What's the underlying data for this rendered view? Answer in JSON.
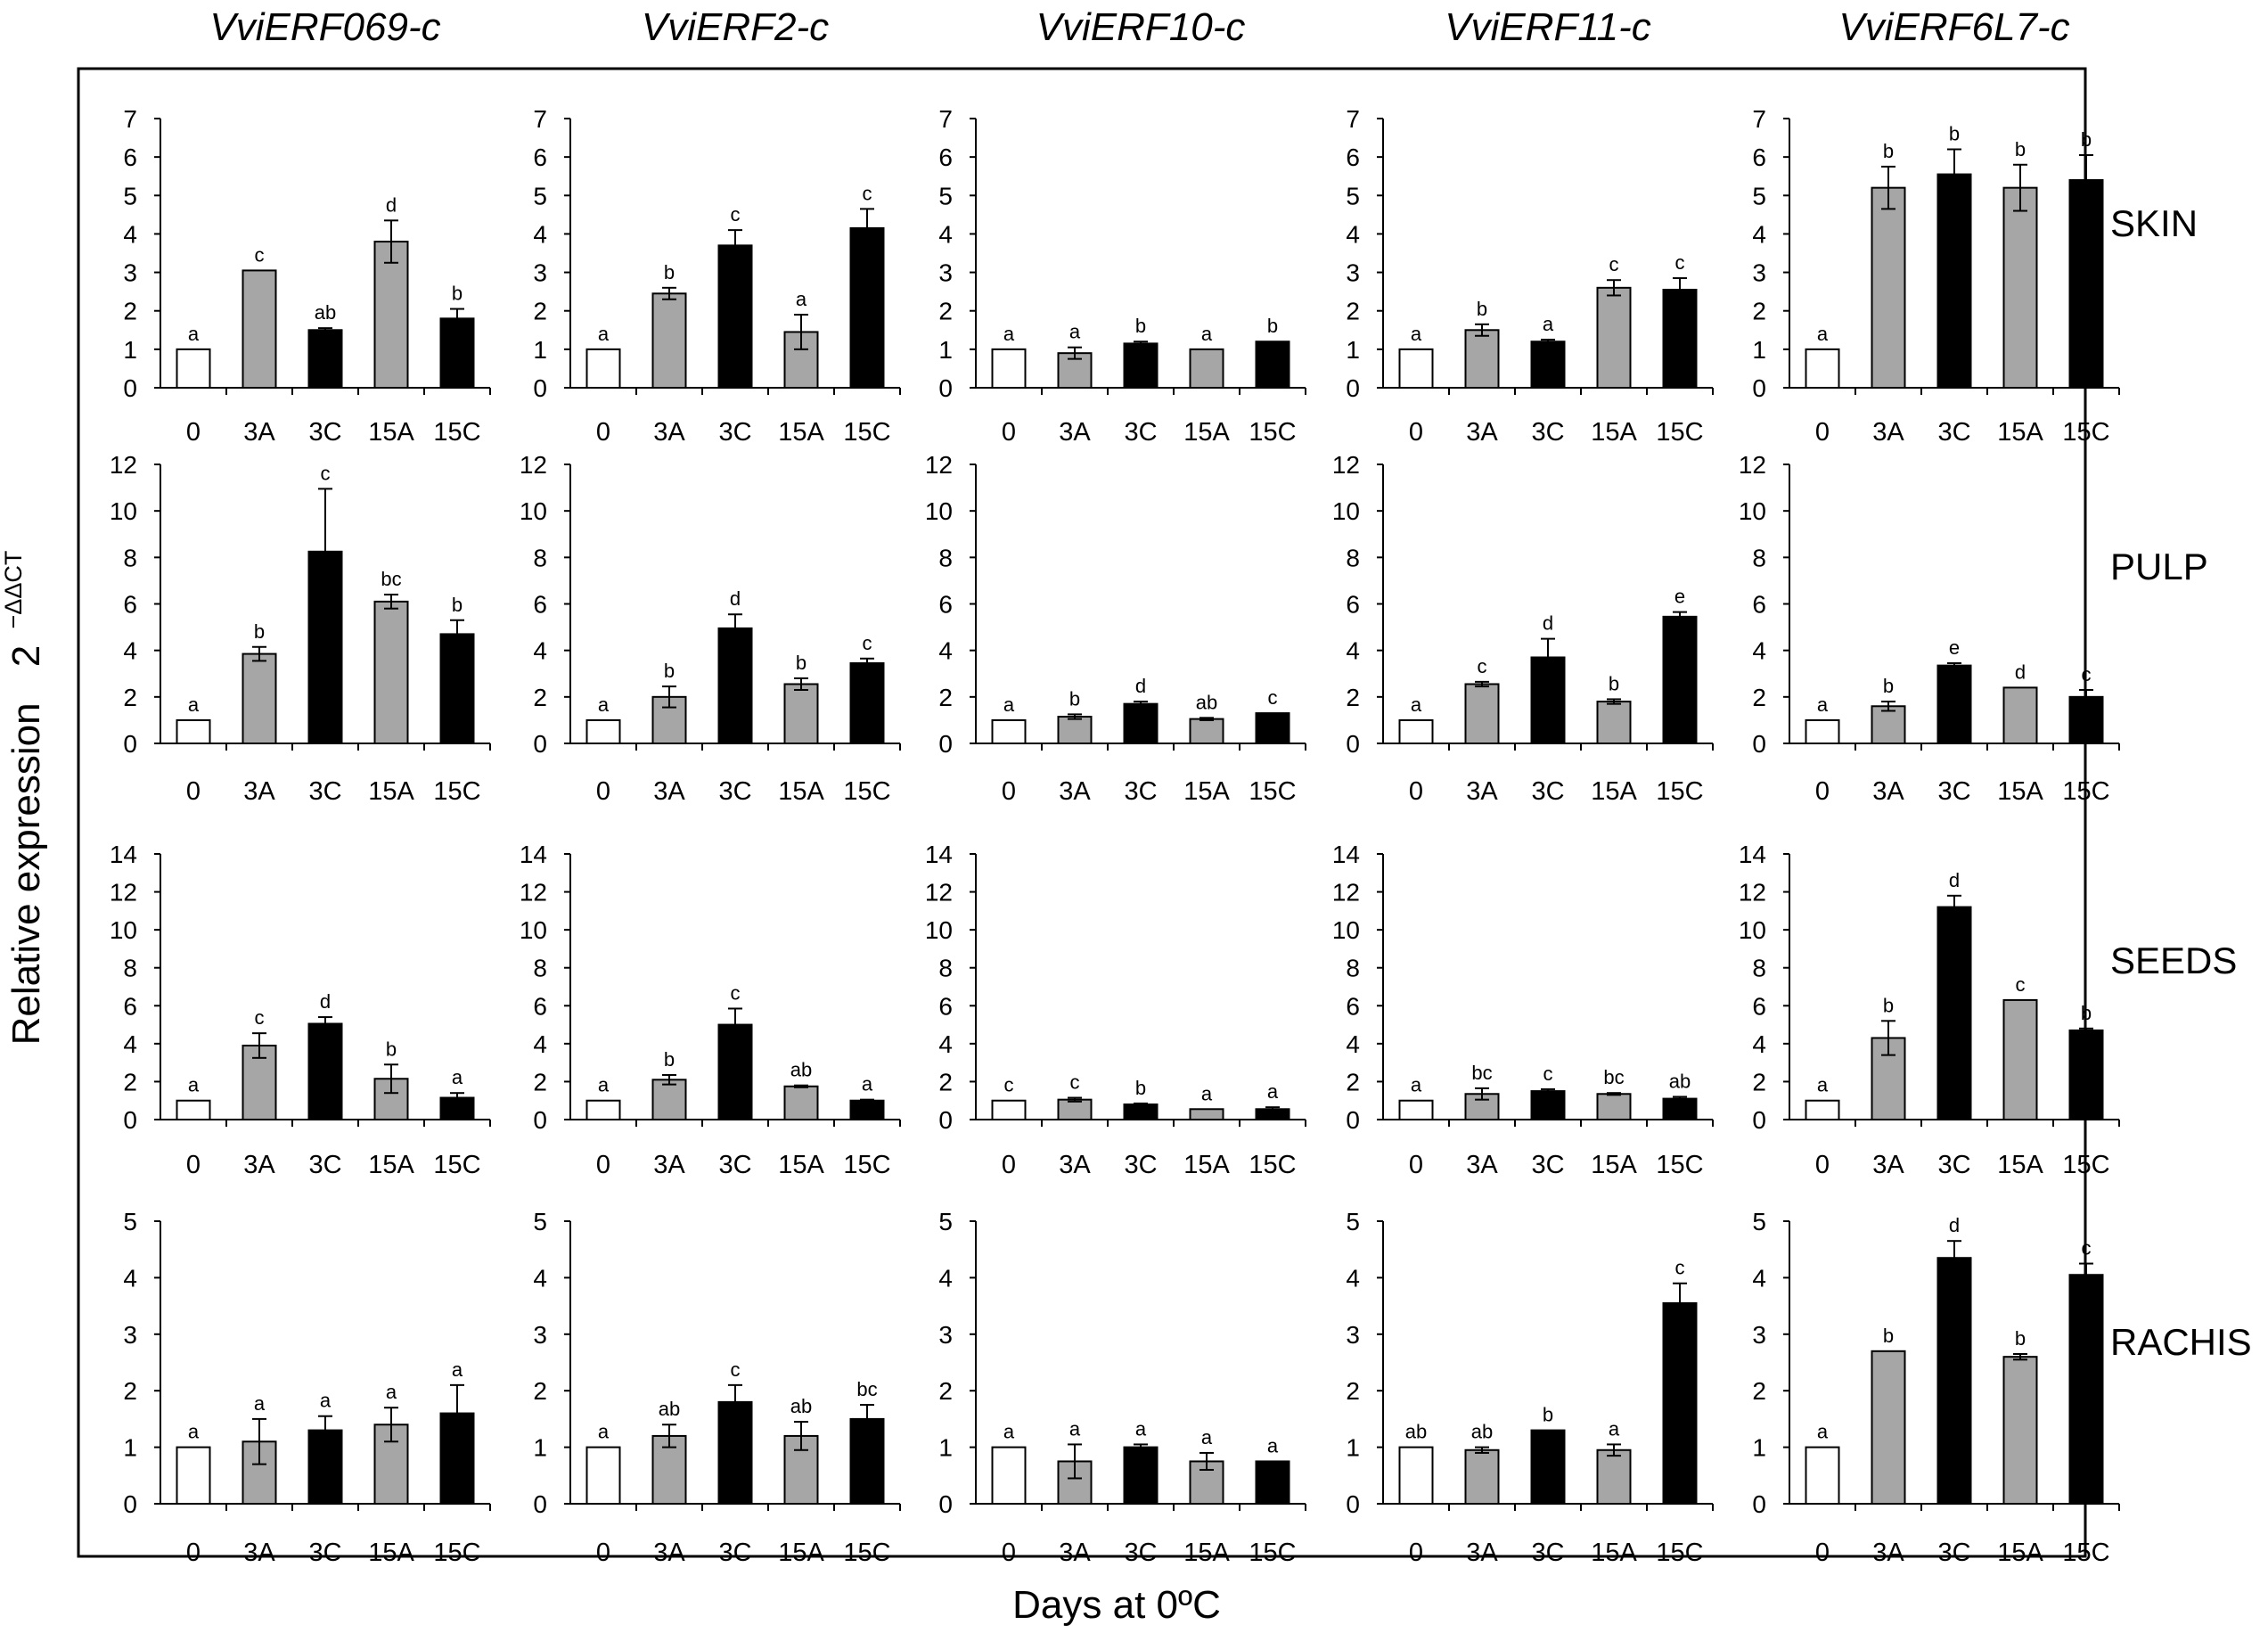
{
  "chart_data": {
    "type": "bar",
    "xlabel": "Days at 0ºC",
    "ylabel_text": "Relative expression",
    "ylabel_base": "2",
    "ylabel_superscript": "−ΔΔCT",
    "categories": [
      "0",
      "3A",
      "3C",
      "15A",
      "15C"
    ],
    "bar_colors": [
      "#ffffff",
      "#a6a6a6",
      "#000000",
      "#a6a6a6",
      "#000000"
    ],
    "genes": [
      "VviERF069-c",
      "VviERF2-c",
      "VviERF10-c",
      "VviERF11-c",
      "VviERF6L7-c"
    ],
    "tissues": [
      {
        "name": "SKIN",
        "ylim": [
          0,
          7
        ],
        "ticks": [
          0,
          1,
          2,
          3,
          4,
          5,
          6,
          7
        ],
        "panels": [
          {
            "values": [
              1,
              3.05,
              1.5,
              3.8,
              1.8
            ],
            "errors": [
              0,
              0,
              0.05,
              0.55,
              0.25
            ],
            "letters": [
              "a",
              "c",
              "ab",
              "d",
              "b"
            ]
          },
          {
            "values": [
              1,
              2.45,
              3.7,
              1.45,
              4.15
            ],
            "errors": [
              0,
              0.15,
              0.4,
              0.45,
              0.5
            ],
            "letters": [
              "a",
              "b",
              "c",
              "a",
              "c"
            ]
          },
          {
            "values": [
              1,
              0.9,
              1.15,
              1.0,
              1.2
            ],
            "errors": [
              0,
              0.15,
              0.05,
              0,
              0
            ],
            "letters": [
              "a",
              "a",
              "b",
              "a",
              "b"
            ]
          },
          {
            "values": [
              1,
              1.5,
              1.2,
              2.6,
              2.55
            ],
            "errors": [
              0,
              0.15,
              0.05,
              0.2,
              0.3
            ],
            "letters": [
              "a",
              "b",
              "a",
              "c",
              "c"
            ]
          },
          {
            "values": [
              1,
              5.2,
              5.55,
              5.2,
              5.4
            ],
            "errors": [
              0,
              0.55,
              0.65,
              0.6,
              0.65
            ],
            "letters": [
              "a",
              "b",
              "b",
              "b",
              "b"
            ]
          }
        ]
      },
      {
        "name": "PULP",
        "ylim": [
          0,
          12
        ],
        "ticks": [
          0,
          2,
          4,
          6,
          8,
          10,
          12
        ],
        "panels": [
          {
            "values": [
              1,
              3.85,
              8.25,
              6.1,
              4.7
            ],
            "errors": [
              0,
              0.3,
              2.7,
              0.3,
              0.6
            ],
            "letters": [
              "a",
              "b",
              "c",
              "bc",
              "b"
            ]
          },
          {
            "values": [
              1,
              2.0,
              4.95,
              2.55,
              3.45
            ],
            "errors": [
              0,
              0.45,
              0.6,
              0.25,
              0.2
            ],
            "letters": [
              "a",
              "b",
              "d",
              "b",
              "c"
            ]
          },
          {
            "values": [
              1,
              1.15,
              1.7,
              1.05,
              1.3
            ],
            "errors": [
              0,
              0.1,
              0.1,
              0.05,
              0
            ],
            "letters": [
              "a",
              "b",
              "d",
              "ab",
              "c"
            ]
          },
          {
            "values": [
              1,
              2.55,
              3.7,
              1.8,
              5.45
            ],
            "errors": [
              0,
              0.1,
              0.8,
              0.1,
              0.2
            ],
            "letters": [
              "a",
              "c",
              "d",
              "b",
              "e"
            ]
          },
          {
            "values": [
              1,
              1.6,
              3.35,
              2.4,
              2.0
            ],
            "errors": [
              0,
              0.2,
              0.1,
              0,
              0.3
            ],
            "letters": [
              "a",
              "b",
              "e",
              "d",
              "c"
            ]
          }
        ]
      },
      {
        "name": "SEEDS",
        "ylim": [
          0,
          14
        ],
        "ticks": [
          0,
          2,
          4,
          6,
          8,
          10,
          12,
          14
        ],
        "panels": [
          {
            "values": [
              1,
              3.9,
              5.05,
              2.15,
              1.15
            ],
            "errors": [
              0,
              0.65,
              0.35,
              0.75,
              0.25
            ],
            "letters": [
              "a",
              "c",
              "d",
              "b",
              "a"
            ]
          },
          {
            "values": [
              1,
              2.1,
              5.0,
              1.75,
              1.0
            ],
            "errors": [
              0,
              0.25,
              0.85,
              0.05,
              0.05
            ],
            "letters": [
              "a",
              "b",
              "c",
              "ab",
              "a"
            ]
          },
          {
            "values": [
              1,
              1.05,
              0.8,
              0.55,
              0.55
            ],
            "errors": [
              0,
              0.1,
              0.05,
              0,
              0.1
            ],
            "letters": [
              "c",
              "c",
              "b",
              "a",
              "a"
            ]
          },
          {
            "values": [
              1,
              1.35,
              1.5,
              1.35,
              1.1
            ],
            "errors": [
              0,
              0.3,
              0.1,
              0.05,
              0.1
            ],
            "letters": [
              "a",
              "bc",
              "c",
              "bc",
              "ab"
            ]
          },
          {
            "values": [
              1,
              4.3,
              11.2,
              6.3,
              4.7
            ],
            "errors": [
              0,
              0.9,
              0.6,
              0,
              0.1
            ],
            "letters": [
              "a",
              "b",
              "d",
              "c",
              "b"
            ]
          }
        ]
      },
      {
        "name": "RACHIS",
        "ylim": [
          0,
          5
        ],
        "ticks": [
          0,
          1,
          2,
          3,
          4,
          5
        ],
        "panels": [
          {
            "values": [
              1,
              1.1,
              1.3,
              1.4,
              1.6
            ],
            "errors": [
              0,
              0.4,
              0.25,
              0.3,
              0.5
            ],
            "letters": [
              "a",
              "a",
              "a",
              "a",
              "a"
            ]
          },
          {
            "values": [
              1,
              1.2,
              1.8,
              1.2,
              1.5
            ],
            "errors": [
              0,
              0.2,
              0.3,
              0.25,
              0.25
            ],
            "letters": [
              "a",
              "ab",
              "c",
              "ab",
              "bc"
            ]
          },
          {
            "values": [
              1,
              0.75,
              1.0,
              0.75,
              0.75
            ],
            "errors": [
              0,
              0.3,
              0.05,
              0.15,
              0
            ],
            "letters": [
              "a",
              "a",
              "a",
              "a",
              "a"
            ]
          },
          {
            "values": [
              1,
              0.95,
              1.3,
              0.95,
              3.55
            ],
            "errors": [
              0,
              0.05,
              0,
              0.1,
              0.35
            ],
            "letters": [
              "ab",
              "ab",
              "b",
              "a",
              "c"
            ]
          },
          {
            "values": [
              1,
              2.7,
              4.35,
              2.6,
              4.05
            ],
            "errors": [
              0,
              0,
              0.3,
              0.05,
              0.2
            ],
            "letters": [
              "a",
              "b",
              "d",
              "b",
              "c"
            ]
          }
        ]
      }
    ]
  }
}
